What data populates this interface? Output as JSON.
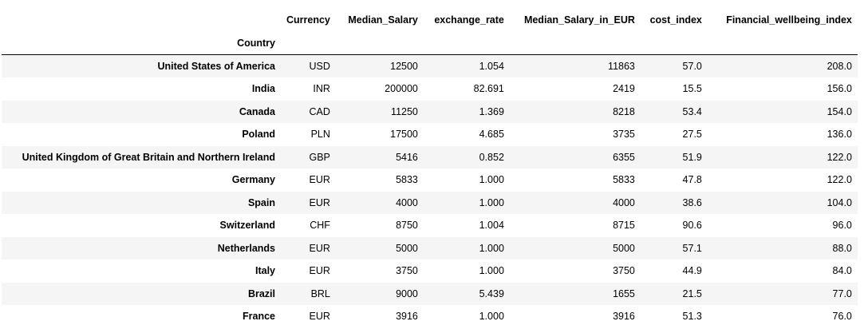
{
  "table": {
    "columns": [
      "Currency",
      "Median_Salary",
      "exchange_rate",
      "Median_Salary_in_EUR",
      "cost_index",
      "Financial_wellbeing_index"
    ],
    "index_name": "Country",
    "rows": [
      {
        "country": "United States of America",
        "cells": [
          "USD",
          "12500",
          "1.054",
          "11863",
          "57.0",
          "208.0"
        ]
      },
      {
        "country": "India",
        "cells": [
          "INR",
          "200000",
          "82.691",
          "2419",
          "15.5",
          "156.0"
        ]
      },
      {
        "country": "Canada",
        "cells": [
          "CAD",
          "11250",
          "1.369",
          "8218",
          "53.4",
          "154.0"
        ]
      },
      {
        "country": "Poland",
        "cells": [
          "PLN",
          "17500",
          "4.685",
          "3735",
          "27.5",
          "136.0"
        ]
      },
      {
        "country": "United Kingdom of Great Britain and Northern Ireland",
        "cells": [
          "GBP",
          "5416",
          "0.852",
          "6355",
          "51.9",
          "122.0"
        ]
      },
      {
        "country": "Germany",
        "cells": [
          "EUR",
          "5833",
          "1.000",
          "5833",
          "47.8",
          "122.0"
        ]
      },
      {
        "country": "Spain",
        "cells": [
          "EUR",
          "4000",
          "1.000",
          "4000",
          "38.6",
          "104.0"
        ]
      },
      {
        "country": "Switzerland",
        "cells": [
          "CHF",
          "8750",
          "1.004",
          "8715",
          "90.6",
          "96.0"
        ]
      },
      {
        "country": "Netherlands",
        "cells": [
          "EUR",
          "5000",
          "1.000",
          "5000",
          "57.1",
          "88.0"
        ]
      },
      {
        "country": "Italy",
        "cells": [
          "EUR",
          "3750",
          "1.000",
          "3750",
          "44.9",
          "84.0"
        ]
      },
      {
        "country": "Brazil",
        "cells": [
          "BRL",
          "9000",
          "5.439",
          "1655",
          "21.5",
          "77.0"
        ]
      },
      {
        "country": "France",
        "cells": [
          "EUR",
          "3916",
          "1.000",
          "3916",
          "51.3",
          "76.0"
        ]
      }
    ]
  }
}
